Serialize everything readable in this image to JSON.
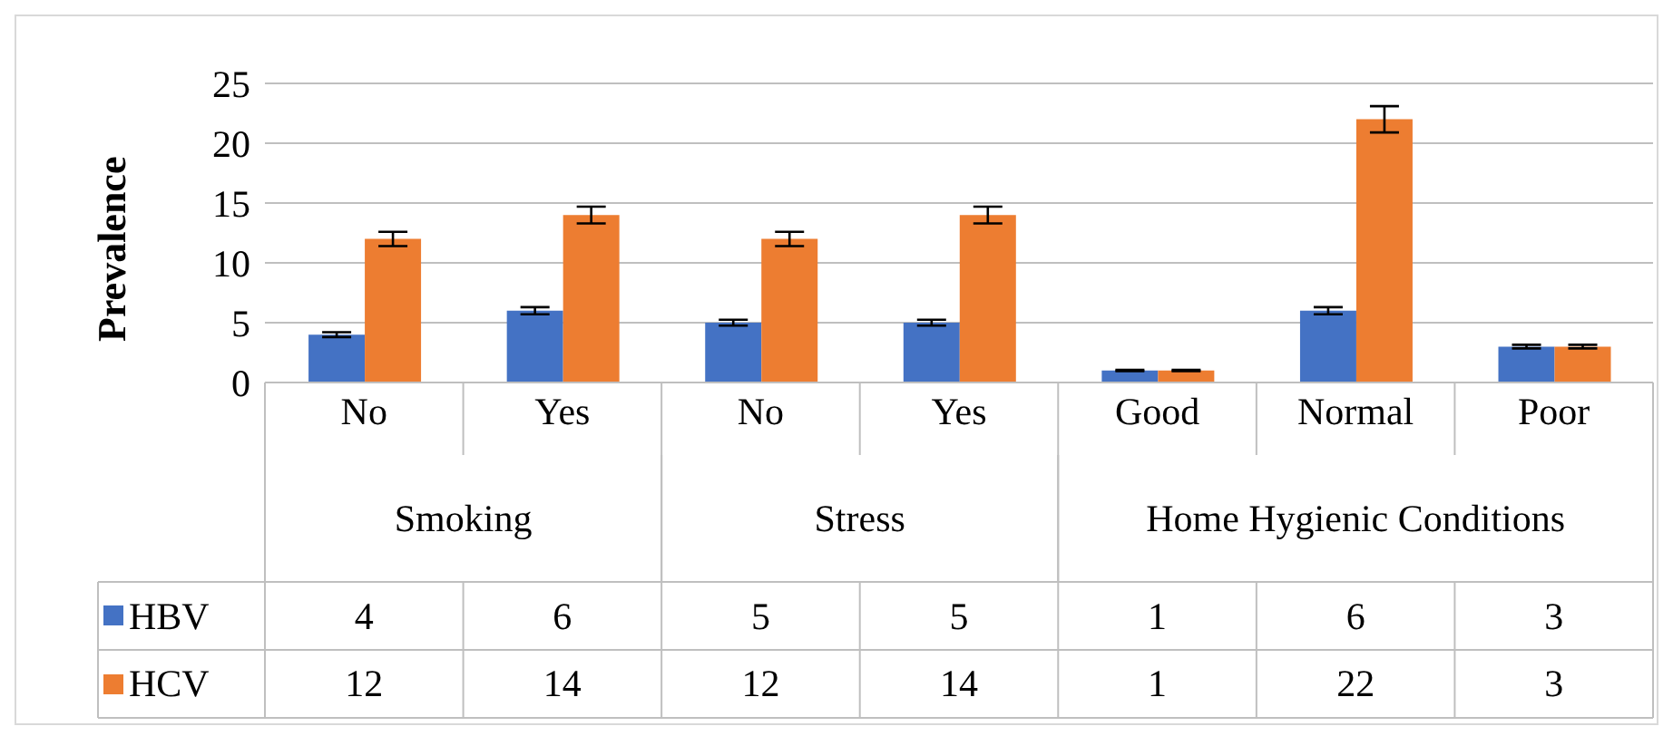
{
  "chart_data": {
    "type": "bar",
    "ylabel": "Prevalence",
    "categories": [
      "No",
      "Yes",
      "No",
      "Yes",
      "Good",
      "Normal",
      "Poor"
    ],
    "annotations": [
      "Smoking",
      "Stress",
      "Home Hygienic Conditions"
    ],
    "series": [
      {
        "name": "HBV",
        "color": "#4472c4",
        "values": [
          4,
          6,
          5,
          5,
          1,
          6,
          3
        ],
        "errors": [
          0.2,
          0.3,
          0.25,
          0.25,
          0.05,
          0.3,
          0.15
        ]
      },
      {
        "name": "HCV",
        "color": "#ed7d31",
        "values": [
          12,
          14,
          12,
          14,
          1,
          22,
          3
        ],
        "errors": [
          0.6,
          0.7,
          0.6,
          0.7,
          0.05,
          1.1,
          0.15
        ]
      }
    ],
    "ylim": [
      0,
      25
    ],
    "yticks": [
      0,
      5,
      10,
      15,
      20,
      25
    ],
    "grid": "y",
    "legend": "bottom",
    "data_labels": true
  }
}
